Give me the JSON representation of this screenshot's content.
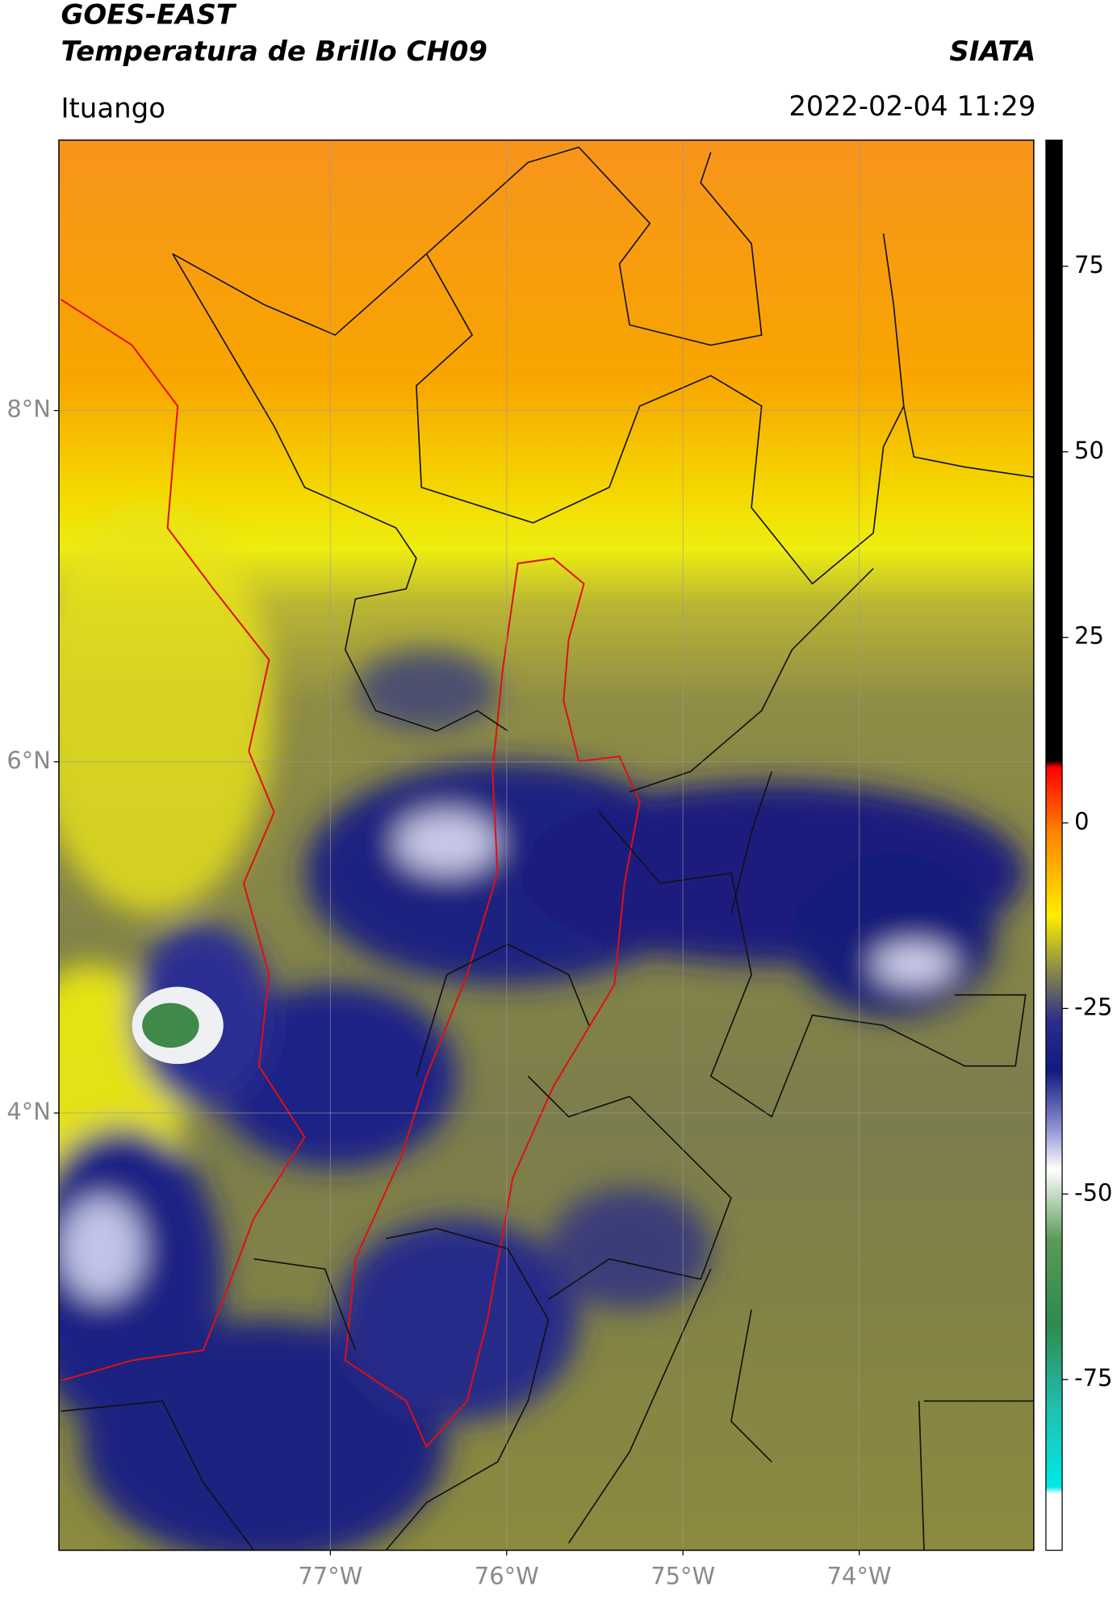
{
  "header": {
    "title": "GOES-EAST",
    "subtitle": "Temperatura de Brillo CH09",
    "source": "SIATA",
    "location": "Ituango",
    "timestamp": "2022-02-04 11:29"
  },
  "map": {
    "lon_range": [
      -78.54,
      -73.01
    ],
    "lat_range": [
      1.51,
      9.54
    ],
    "grid": true,
    "lat_ticks": [
      {
        "value": 8,
        "label": "8°N"
      },
      {
        "value": 6,
        "label": "6°N"
      },
      {
        "value": 4,
        "label": "4°N"
      }
    ],
    "lon_ticks": [
      {
        "value": -77,
        "label": "77°W"
      },
      {
        "value": -76,
        "label": "76°W"
      },
      {
        "value": -75,
        "label": "75°W"
      },
      {
        "value": -74,
        "label": "74°W"
      }
    ]
  },
  "colorbar": {
    "range": [
      -98,
      92
    ],
    "ticks": [
      -75,
      -50,
      -25,
      0,
      25,
      50,
      75
    ]
  }
}
